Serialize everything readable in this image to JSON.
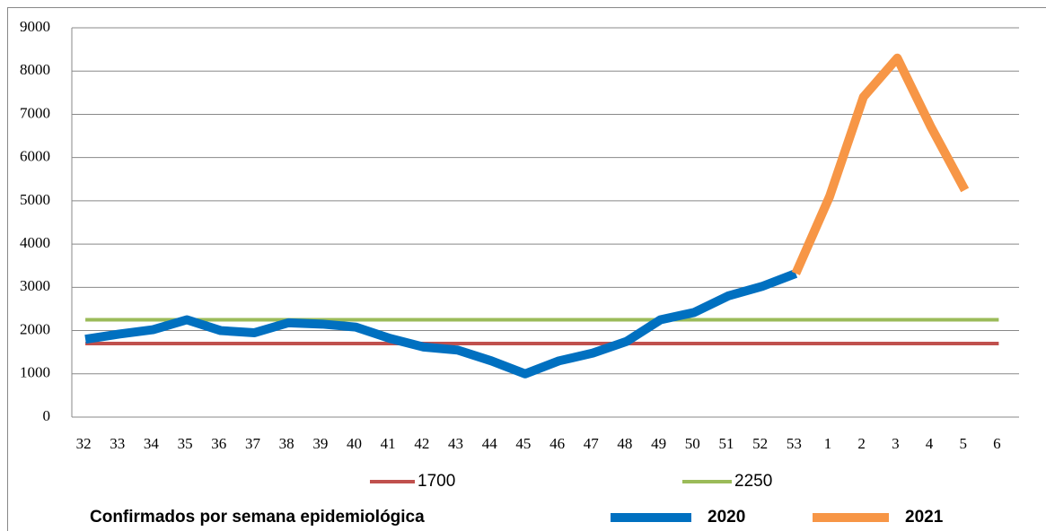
{
  "chart_data": {
    "type": "line",
    "legend_title": "Confirmados por semana epidemiológica",
    "categories": [
      "32",
      "33",
      "34",
      "35",
      "36",
      "37",
      "38",
      "39",
      "40",
      "41",
      "42",
      "43",
      "44",
      "45",
      "46",
      "47",
      "48",
      "49",
      "50",
      "51",
      "52",
      "53",
      "1",
      "2",
      "3",
      "4",
      "5",
      "6"
    ],
    "series": [
      {
        "name": "1700",
        "color": "#c0504d",
        "values": [
          1700,
          1700,
          1700,
          1700,
          1700,
          1700,
          1700,
          1700,
          1700,
          1700,
          1700,
          1700,
          1700,
          1700,
          1700,
          1700,
          1700,
          1700,
          1700,
          1700,
          1700,
          1700,
          1700,
          1700,
          1700,
          1700,
          1700,
          1700
        ]
      },
      {
        "name": "2250",
        "color": "#9bbb59",
        "values": [
          2250,
          2250,
          2250,
          2250,
          2250,
          2250,
          2250,
          2250,
          2250,
          2250,
          2250,
          2250,
          2250,
          2250,
          2250,
          2250,
          2250,
          2250,
          2250,
          2250,
          2250,
          2250,
          2250,
          2250,
          2250,
          2250,
          2250,
          2250
        ]
      },
      {
        "name": "2020",
        "color": "#0070c0",
        "values": [
          1800,
          1920,
          2020,
          2250,
          2000,
          1950,
          2180,
          2150,
          2080,
          1820,
          1620,
          1550,
          1300,
          1000,
          1300,
          1480,
          1750,
          2250,
          2420,
          2800,
          3020,
          3320,
          null,
          null,
          null,
          null,
          null,
          null
        ]
      },
      {
        "name": "2021",
        "color": "#f79646",
        "values": [
          null,
          null,
          null,
          null,
          null,
          null,
          null,
          null,
          null,
          null,
          null,
          null,
          null,
          null,
          null,
          null,
          null,
          null,
          null,
          null,
          null,
          3320,
          5100,
          7400,
          8300,
          6700,
          5250,
          null
        ]
      }
    ],
    "ylim": [
      0,
      9000
    ],
    "yticks": [
      0,
      1000,
      2000,
      3000,
      4000,
      5000,
      6000,
      7000,
      8000,
      9000
    ],
    "grid": true
  }
}
